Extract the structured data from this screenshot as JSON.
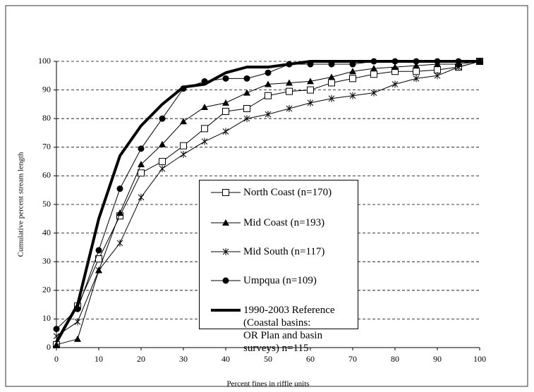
{
  "chart_data": {
    "type": "line",
    "x_label": "Percent fines in riffle units",
    "y_label": "Cumulative percent stream length",
    "x": [
      0,
      5,
      10,
      15,
      20,
      25,
      30,
      35,
      40,
      45,
      50,
      55,
      60,
      65,
      70,
      75,
      80,
      85,
      90,
      95,
      100
    ],
    "xlim": [
      0,
      100
    ],
    "xticks": [
      0,
      10,
      20,
      30,
      40,
      50,
      60,
      70,
      80,
      90,
      100
    ],
    "ylim": [
      0,
      100
    ],
    "yticks": [
      0,
      10,
      20,
      30,
      40,
      50,
      60,
      70,
      80,
      90,
      100
    ],
    "grid": true,
    "series": [
      {
        "name": "North Coast (n=170)",
        "color": "#000000",
        "marker": "square",
        "width": 1,
        "values": [
          1,
          14.5,
          31,
          46,
          61,
          65,
          70.5,
          76.5,
          82.5,
          83.5,
          88,
          89.5,
          90,
          92.5,
          94,
          95.5,
          96.5,
          96.5,
          97,
          98,
          100
        ]
      },
      {
        "name": "Mid Coast (n=193)",
        "color": "#000000",
        "marker": "triangle",
        "width": 1,
        "values": [
          1,
          3,
          27,
          47,
          64,
          71,
          79,
          84,
          85.5,
          89,
          92,
          92.5,
          93,
          94.5,
          96.5,
          97.5,
          98,
          98.5,
          99,
          99,
          100
        ]
      },
      {
        "name": "Mid South (n=117)",
        "color": "#000000",
        "marker": "star",
        "width": 1,
        "values": [
          4,
          9,
          27,
          36.5,
          52.5,
          62.5,
          67.5,
          72,
          75.5,
          80,
          81.5,
          83.5,
          85.5,
          87,
          88,
          89,
          92,
          94,
          95,
          98,
          100
        ]
      },
      {
        "name": "Umpqua (n=109)",
        "color": "#000000",
        "marker": "circle",
        "width": 1,
        "values": [
          6.5,
          13.5,
          34,
          55.5,
          69.5,
          80,
          90.5,
          93,
          94,
          94,
          96,
          99,
          99,
          99,
          99,
          100,
          100,
          100,
          100,
          100,
          100
        ]
      },
      {
        "name": "1990-2003 Reference (Coastal basins:\nOR Plan and basin surveys)  n=115",
        "color": "#000000",
        "marker": "none",
        "width": 4,
        "values": [
          2,
          15,
          45,
          67,
          77.5,
          85,
          91,
          92,
          96,
          98,
          98,
          99,
          100,
          100,
          100,
          100,
          100,
          100,
          100,
          100,
          100
        ]
      }
    ]
  }
}
